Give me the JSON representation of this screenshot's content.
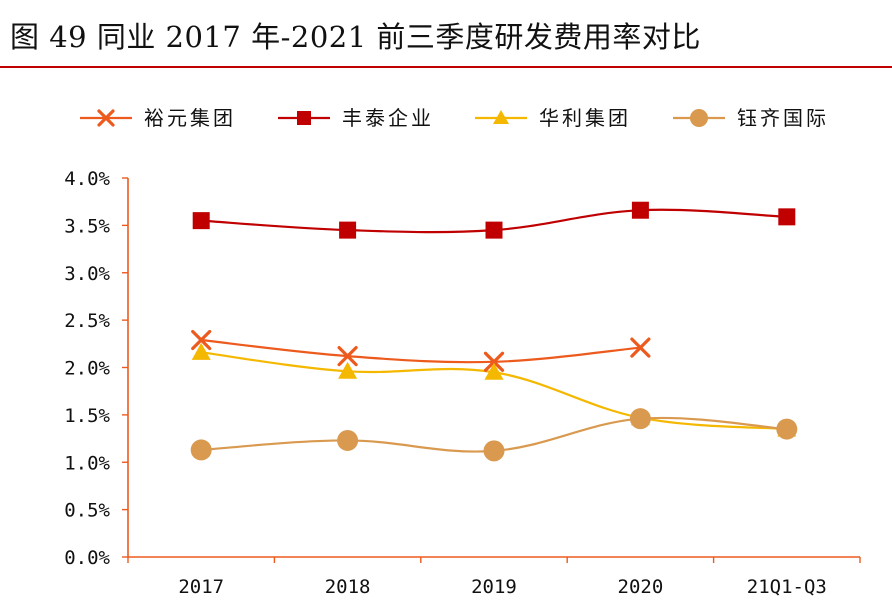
{
  "figure": {
    "title": "图 49 同业 2017 年-2021 前三季度研发费用率对比"
  },
  "chart_data": {
    "type": "line",
    "title": "图 49 同业 2017 年-2021 前三季度研发费用率对比",
    "xlabel": "",
    "ylabel": "",
    "categories": [
      "2017",
      "2018",
      "2019",
      "2020",
      "21Q1-Q3"
    ],
    "ylim": [
      0,
      0.04
    ],
    "yticks": [
      "0.0%",
      "0.5%",
      "1.0%",
      "1.5%",
      "2.0%",
      "2.5%",
      "3.0%",
      "3.5%",
      "4.0%"
    ],
    "grid": false,
    "legend_position": "top",
    "series": [
      {
        "name": "裕元集团",
        "color": "#ed5a1e",
        "marker": "x",
        "values": [
          0.0229,
          0.0212,
          0.0206,
          0.0221,
          null
        ]
      },
      {
        "name": "丰泰企业",
        "color": "#c00000",
        "marker": "square",
        "values": [
          0.0355,
          0.0345,
          0.0345,
          0.0366,
          0.0359
        ]
      },
      {
        "name": "华利集团",
        "color": "#f5b800",
        "marker": "triangle",
        "values": [
          0.0216,
          0.0196,
          0.0195,
          0.0147,
          0.0135
        ]
      },
      {
        "name": "钰齐国际",
        "color": "#d99a50",
        "marker": "circle",
        "values": [
          0.0113,
          0.0123,
          0.0112,
          0.0146,
          0.0135
        ]
      }
    ]
  }
}
